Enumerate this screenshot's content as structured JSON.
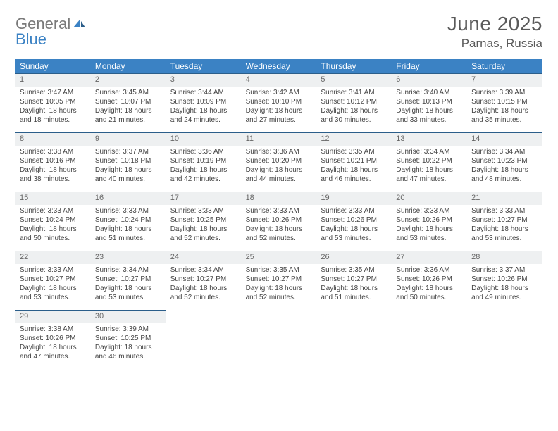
{
  "brand": {
    "text1": "General",
    "text2": "Blue"
  },
  "title": {
    "month": "June 2025",
    "location": "Parnas, Russia"
  },
  "style": {
    "header_bg": "#3b82c4",
    "header_fg": "#ffffff",
    "daynum_bg": "#eef0f1",
    "border_color": "#2b5e8a",
    "text_color": "#444444",
    "brand_gray": "#7a7a7a",
    "brand_blue": "#3b82c4",
    "title_color": "#5a5a5a",
    "cell_fontsize": 10,
    "head_fontsize": 12,
    "month_fontsize": 28,
    "location_fontsize": 17,
    "columns": 7
  },
  "weekdays": [
    "Sunday",
    "Monday",
    "Tuesday",
    "Wednesday",
    "Thursday",
    "Friday",
    "Saturday"
  ],
  "days": [
    {
      "n": "1",
      "sr": "3:47 AM",
      "ss": "10:05 PM",
      "dl": "18 hours and 18 minutes."
    },
    {
      "n": "2",
      "sr": "3:45 AM",
      "ss": "10:07 PM",
      "dl": "18 hours and 21 minutes."
    },
    {
      "n": "3",
      "sr": "3:44 AM",
      "ss": "10:09 PM",
      "dl": "18 hours and 24 minutes."
    },
    {
      "n": "4",
      "sr": "3:42 AM",
      "ss": "10:10 PM",
      "dl": "18 hours and 27 minutes."
    },
    {
      "n": "5",
      "sr": "3:41 AM",
      "ss": "10:12 PM",
      "dl": "18 hours and 30 minutes."
    },
    {
      "n": "6",
      "sr": "3:40 AM",
      "ss": "10:13 PM",
      "dl": "18 hours and 33 minutes."
    },
    {
      "n": "7",
      "sr": "3:39 AM",
      "ss": "10:15 PM",
      "dl": "18 hours and 35 minutes."
    },
    {
      "n": "8",
      "sr": "3:38 AM",
      "ss": "10:16 PM",
      "dl": "18 hours and 38 minutes."
    },
    {
      "n": "9",
      "sr": "3:37 AM",
      "ss": "10:18 PM",
      "dl": "18 hours and 40 minutes."
    },
    {
      "n": "10",
      "sr": "3:36 AM",
      "ss": "10:19 PM",
      "dl": "18 hours and 42 minutes."
    },
    {
      "n": "11",
      "sr": "3:36 AM",
      "ss": "10:20 PM",
      "dl": "18 hours and 44 minutes."
    },
    {
      "n": "12",
      "sr": "3:35 AM",
      "ss": "10:21 PM",
      "dl": "18 hours and 46 minutes."
    },
    {
      "n": "13",
      "sr": "3:34 AM",
      "ss": "10:22 PM",
      "dl": "18 hours and 47 minutes."
    },
    {
      "n": "14",
      "sr": "3:34 AM",
      "ss": "10:23 PM",
      "dl": "18 hours and 48 minutes."
    },
    {
      "n": "15",
      "sr": "3:33 AM",
      "ss": "10:24 PM",
      "dl": "18 hours and 50 minutes."
    },
    {
      "n": "16",
      "sr": "3:33 AM",
      "ss": "10:24 PM",
      "dl": "18 hours and 51 minutes."
    },
    {
      "n": "17",
      "sr": "3:33 AM",
      "ss": "10:25 PM",
      "dl": "18 hours and 52 minutes."
    },
    {
      "n": "18",
      "sr": "3:33 AM",
      "ss": "10:26 PM",
      "dl": "18 hours and 52 minutes."
    },
    {
      "n": "19",
      "sr": "3:33 AM",
      "ss": "10:26 PM",
      "dl": "18 hours and 53 minutes."
    },
    {
      "n": "20",
      "sr": "3:33 AM",
      "ss": "10:26 PM",
      "dl": "18 hours and 53 minutes."
    },
    {
      "n": "21",
      "sr": "3:33 AM",
      "ss": "10:27 PM",
      "dl": "18 hours and 53 minutes."
    },
    {
      "n": "22",
      "sr": "3:33 AM",
      "ss": "10:27 PM",
      "dl": "18 hours and 53 minutes."
    },
    {
      "n": "23",
      "sr": "3:34 AM",
      "ss": "10:27 PM",
      "dl": "18 hours and 53 minutes."
    },
    {
      "n": "24",
      "sr": "3:34 AM",
      "ss": "10:27 PM",
      "dl": "18 hours and 52 minutes."
    },
    {
      "n": "25",
      "sr": "3:35 AM",
      "ss": "10:27 PM",
      "dl": "18 hours and 52 minutes."
    },
    {
      "n": "26",
      "sr": "3:35 AM",
      "ss": "10:27 PM",
      "dl": "18 hours and 51 minutes."
    },
    {
      "n": "27",
      "sr": "3:36 AM",
      "ss": "10:26 PM",
      "dl": "18 hours and 50 minutes."
    },
    {
      "n": "28",
      "sr": "3:37 AM",
      "ss": "10:26 PM",
      "dl": "18 hours and 49 minutes."
    },
    {
      "n": "29",
      "sr": "3:38 AM",
      "ss": "10:26 PM",
      "dl": "18 hours and 47 minutes."
    },
    {
      "n": "30",
      "sr": "3:39 AM",
      "ss": "10:25 PM",
      "dl": "18 hours and 46 minutes."
    }
  ],
  "labels": {
    "sunrise": "Sunrise:",
    "sunset": "Sunset:",
    "daylight": "Daylight:"
  },
  "trailing_empty": 5
}
